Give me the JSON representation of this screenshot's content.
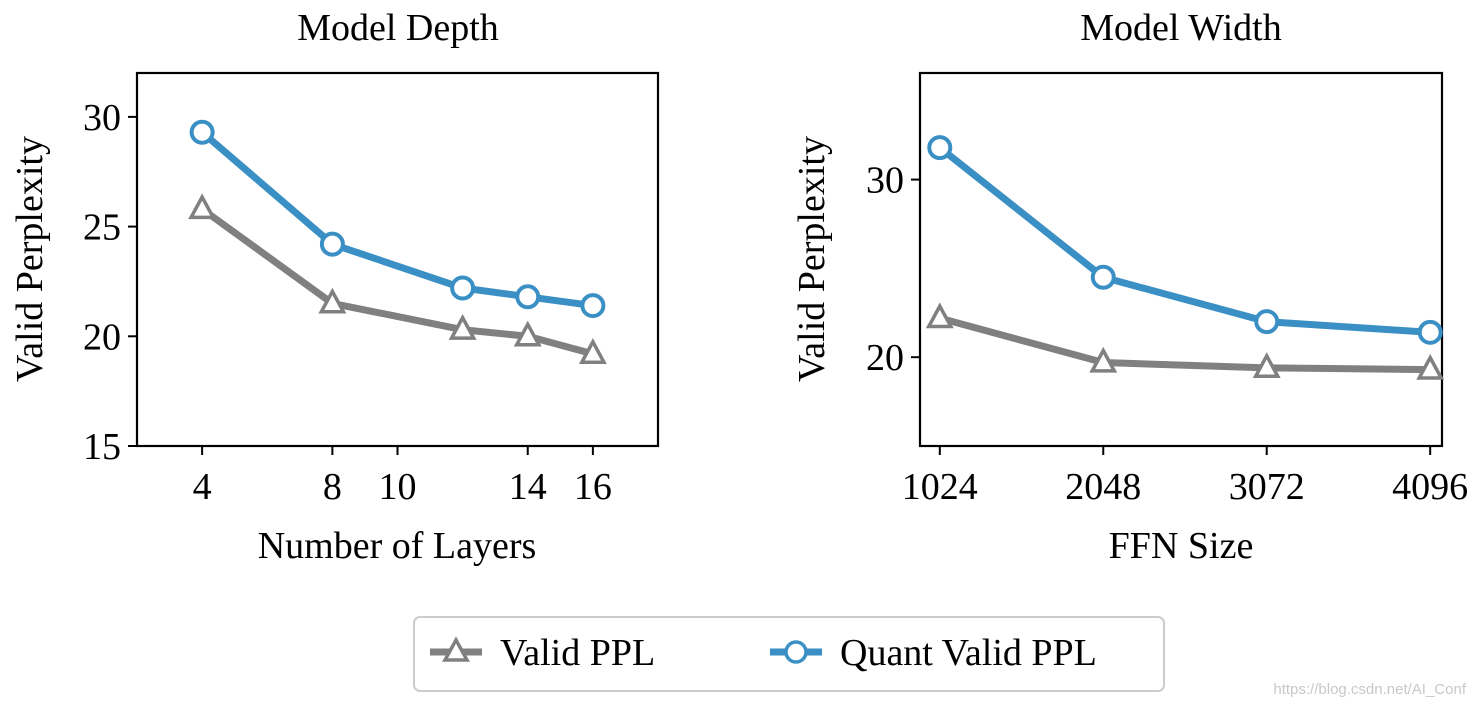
{
  "colors": {
    "valid": "#808080",
    "quant": "#3a8fc4",
    "axis": "#000000",
    "legend_border": "#cccccc"
  },
  "legend": {
    "items": [
      "Valid PPL",
      "Quant Valid PPL"
    ]
  },
  "watermark": "https://blog.csdn.net/AI_Conf",
  "chart_data": [
    {
      "type": "line",
      "title": "Model Depth",
      "xlabel": "Number of Layers",
      "ylabel": "Valid Perplexity",
      "xlim": [
        2,
        18
      ],
      "ylim": [
        15,
        32
      ],
      "xticks": [
        4,
        8,
        10,
        14,
        16
      ],
      "yticks": [
        15,
        20,
        25,
        30
      ],
      "series": [
        {
          "name": "Valid PPL",
          "marker": "triangle",
          "x": [
            4,
            8,
            12,
            14,
            16
          ],
          "values": [
            25.8,
            21.5,
            20.3,
            20.0,
            19.2
          ]
        },
        {
          "name": "Quant Valid PPL",
          "marker": "circle",
          "x": [
            4,
            8,
            12,
            14,
            16
          ],
          "values": [
            29.3,
            24.2,
            22.2,
            21.8,
            21.4
          ]
        }
      ]
    },
    {
      "type": "line",
      "title": "Model Width",
      "xlabel": "FFN Size",
      "ylabel": "Valid Perplexity",
      "xlim": [
        900,
        4170
      ],
      "ylim": [
        15,
        36
      ],
      "xticks": [
        1024,
        2048,
        3072,
        4096
      ],
      "yticks": [
        20,
        30
      ],
      "series": [
        {
          "name": "Valid PPL",
          "marker": "triangle",
          "x": [
            1024,
            2048,
            3072,
            4096
          ],
          "values": [
            22.2,
            19.7,
            19.4,
            19.3
          ]
        },
        {
          "name": "Quant Valid PPL",
          "marker": "circle",
          "x": [
            1024,
            2048,
            3072,
            4096
          ],
          "values": [
            31.8,
            24.5,
            22.0,
            21.4
          ]
        }
      ]
    }
  ]
}
